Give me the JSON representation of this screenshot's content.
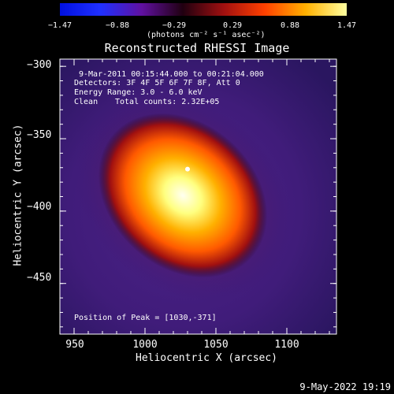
{
  "colorbar": {
    "ticks": [
      "−1.47",
      "−0.88",
      "−0.29",
      "0.29",
      "0.88",
      "1.47"
    ],
    "tick_values": [
      -1.47,
      -0.88,
      -0.29,
      0.29,
      0.88,
      1.47
    ],
    "unit_label": "(photons cm⁻² s⁻¹ asec⁻²)",
    "colors": [
      "#0010e0",
      "#2030ff",
      "#6010a0",
      "#200010",
      "#a01010",
      "#ff4000",
      "#ffb000",
      "#ffffa0"
    ]
  },
  "chart_data": {
    "type": "heatmap",
    "title": "Reconstructed RHESSI Image",
    "xlabel": "Heliocentric X (arcsec)",
    "ylabel": "Heliocentric Y (arcsec)",
    "xlim": [
      940,
      1135
    ],
    "ylim": [
      -485,
      -295
    ],
    "xticks": [
      950,
      1000,
      1050,
      1100
    ],
    "yticks": [
      -300,
      -350,
      -400,
      -450
    ],
    "xtick_labels": [
      "950",
      "1000",
      "1050",
      "1100"
    ],
    "ytick_labels": [
      "−300",
      "−350",
      "−400",
      "−450"
    ],
    "peak": {
      "x": 1030,
      "y": -371
    },
    "annotations": {
      "time_range": "9-Mar-2011 00:15:44.000 to 00:21:04.000",
      "detectors": "Detectors: 3F 4F 5F 6F 7F 8F, Att 0",
      "energy": "Energy Range: 3.0 - 6.0 keV",
      "method": "Clean",
      "counts": "Total counts: 2.32E+05",
      "peak_label": "Position of Peak = [1030,-371]"
    }
  },
  "footer": {
    "timestamp": "9-May-2022 19:19"
  }
}
